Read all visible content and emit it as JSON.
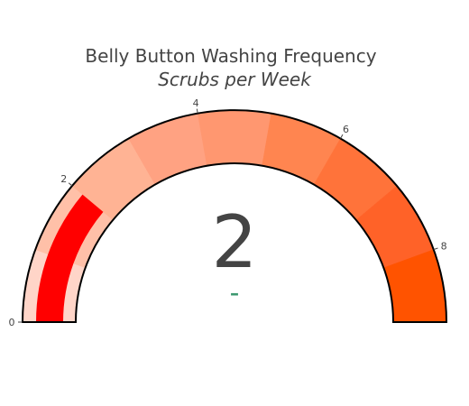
{
  "chart_data": {
    "type": "gauge",
    "title": "Belly Button Washing Frequency",
    "subtitle": "Scrubs per Week",
    "value": 2,
    "value_display": "2",
    "delta_display": "–",
    "range": [
      0,
      9
    ],
    "ticks": [
      {
        "value": 0,
        "label": "0"
      },
      {
        "value": 2,
        "label": "2"
      },
      {
        "value": 4,
        "label": "4"
      },
      {
        "value": 6,
        "label": "6"
      },
      {
        "value": 8,
        "label": "8"
      }
    ],
    "steps": [
      {
        "range": [
          0,
          1
        ],
        "color": "#ffd5c8"
      },
      {
        "range": [
          1,
          2
        ],
        "color": "#ffc0a8"
      },
      {
        "range": [
          2,
          3
        ],
        "color": "#ffb394"
      },
      {
        "range": [
          3,
          4
        ],
        "color": "#ffa282"
      },
      {
        "range": [
          4,
          5
        ],
        "color": "#ff9770"
      },
      {
        "range": [
          5,
          6
        ],
        "color": "#ff8550"
      },
      {
        "range": [
          6,
          7
        ],
        "color": "#ff733a"
      },
      {
        "range": [
          7,
          8
        ],
        "color": "#ff6228"
      },
      {
        "range": [
          8,
          9
        ],
        "color": "#ff5300"
      }
    ],
    "bar_color": "#ff0000",
    "delta_color": "#3d9970",
    "text_color": "#444444"
  }
}
